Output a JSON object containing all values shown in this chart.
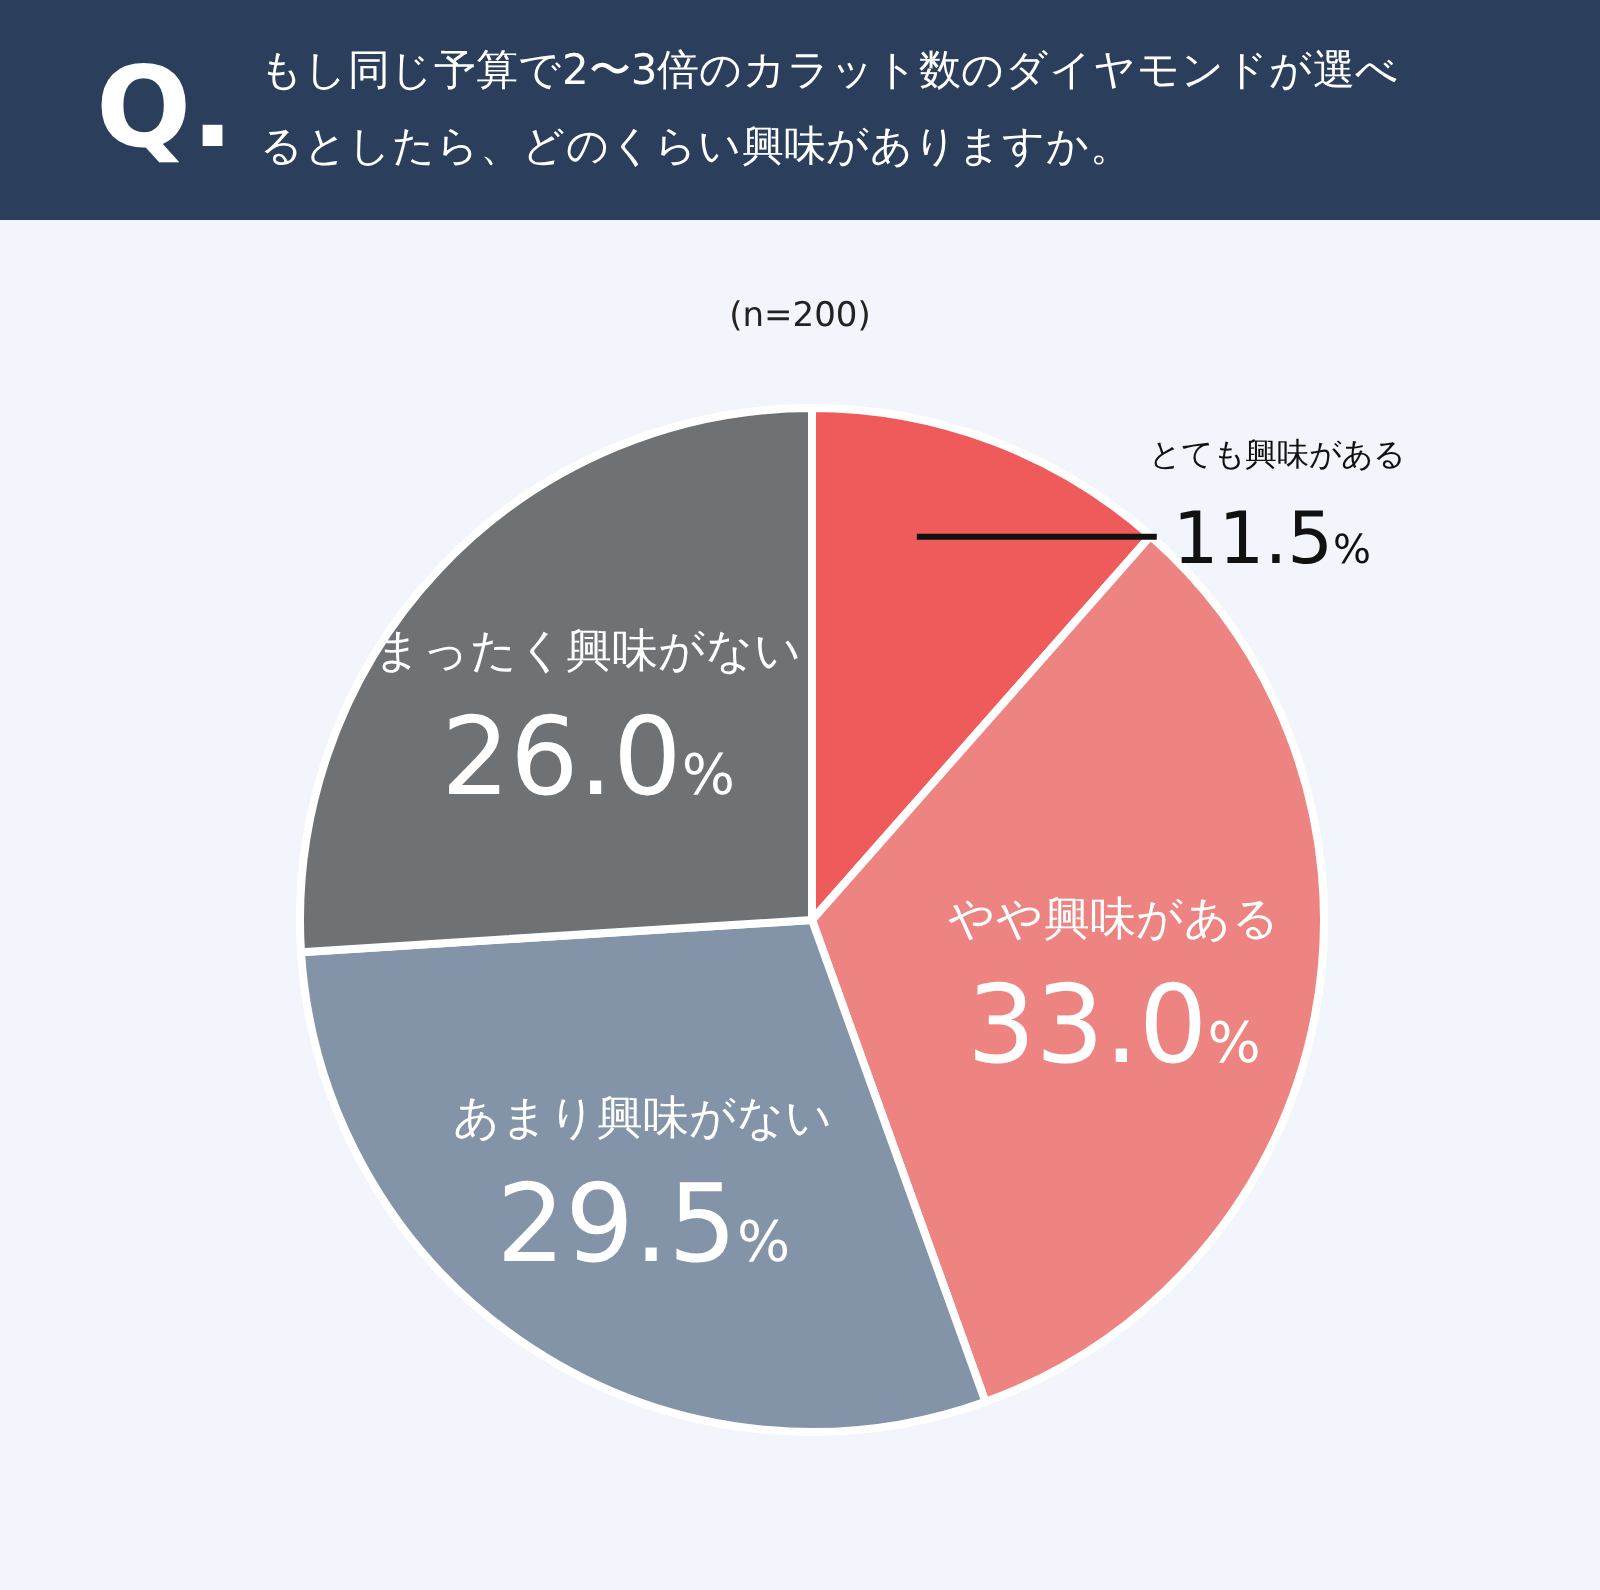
{
  "chart_data": {
    "type": "pie",
    "title": "Q. もし同じ予算で2〜3倍のカラット数のダイヤモンドが選べるとしたら、どのくらい興味がありますか。",
    "subtitle": "(n=200)",
    "categories": [
      "とても興味がある",
      "やや興味がある",
      "あまり興味がない",
      "まったく興味がない"
    ],
    "values": [
      11.5,
      33.0,
      29.5,
      26.0
    ],
    "colors": [
      "#ef5a5a",
      "#ee8482",
      "#8494a8",
      "#6e7275"
    ],
    "value_labels": [
      "11.5%",
      "33.0%",
      "29.5%",
      "26.0%"
    ]
  }
}
